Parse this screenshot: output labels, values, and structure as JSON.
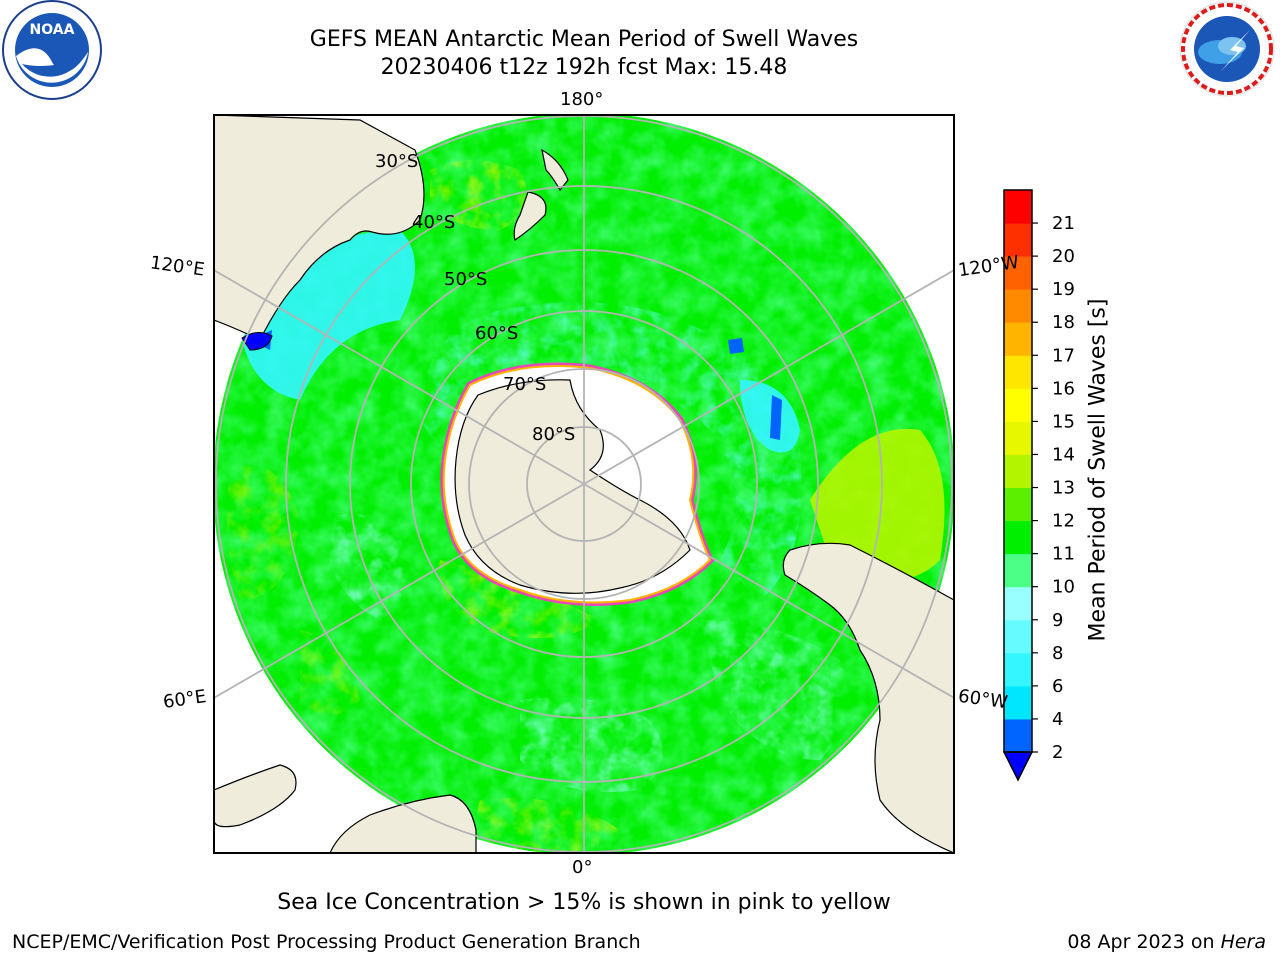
{
  "header": {
    "title_line1": "GEFS MEAN Antarctic Mean Period of Swell Waves",
    "title_line2": "20230406 t12z 192h fcst   Max: 15.48"
  },
  "logos": {
    "left": "NOAA",
    "left_ring_text": "NATIONAL OCEANIC AND ATMOSPHERIC ADMINISTRATION · U.S. DEPARTMENT OF COMMERCE",
    "right_ring_text": "NATIONAL WEATHER SERVICE"
  },
  "map": {
    "longitude_labels": [
      "180°",
      "120°E",
      "120°W",
      "60°E",
      "60°W",
      "0°"
    ],
    "latitude_labels": [
      "30°S",
      "40°S",
      "50°S",
      "60°S",
      "70°S",
      "80°S"
    ]
  },
  "colorbar": {
    "title": "Mean Period of Swell Waves [s]",
    "ticks": [
      "2",
      "4",
      "6",
      "8",
      "9",
      "10",
      "11",
      "12",
      "13",
      "14",
      "15",
      "16",
      "17",
      "18",
      "19",
      "20",
      "21"
    ],
    "colors": [
      "#0064ff",
      "#00e6ff",
      "#33f6ff",
      "#66fcff",
      "#99ffff",
      "#4cff86",
      "#00ee00",
      "#5cf000",
      "#b3f500",
      "#e6f700",
      "#ffff00",
      "#ffe600",
      "#ffb400",
      "#ff8a00",
      "#ff6200",
      "#ff3000",
      "#ff0000"
    ],
    "under_color": "#0000ff"
  },
  "colors": {
    "land": "#efecdc",
    "ice_edge": "#ff33cc",
    "grid": "#b4b4b4"
  },
  "caption": "Sea Ice Concentration > 15% is shown in pink to yellow",
  "footer": {
    "left": "NCEP/EMC/Verification Post Processing Product Generation Branch",
    "right_date": "08 Apr 2023 on ",
    "right_machine": "Hera"
  }
}
